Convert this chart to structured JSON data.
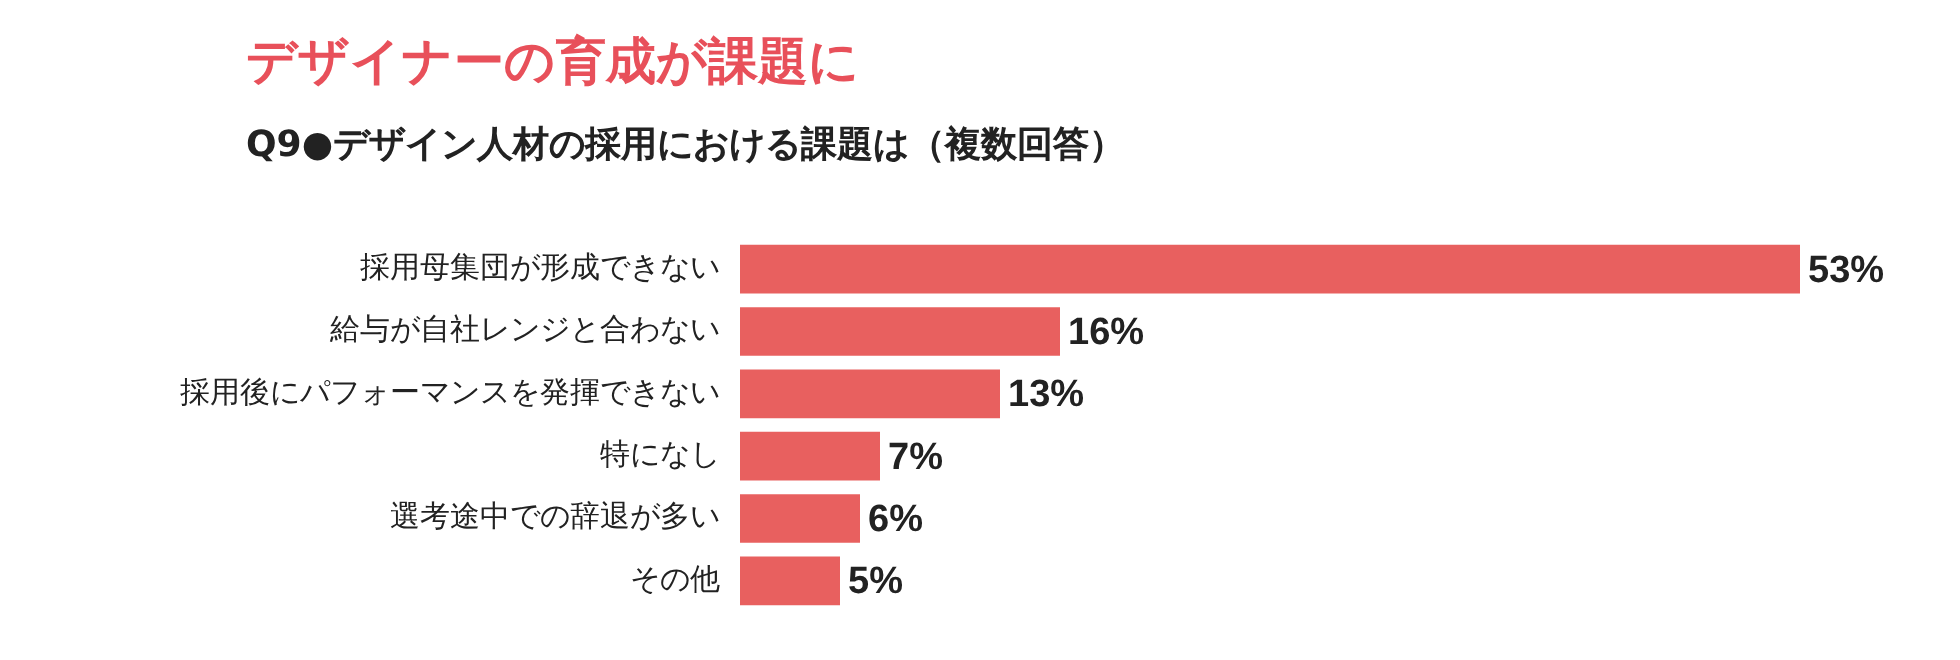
{
  "chart_data": {
    "type": "bar",
    "orientation": "horizontal",
    "title": "デザイナーの育成が課題に",
    "subtitle": "Q9●デザイン人材の採用における課題は（複数回答）",
    "categories": [
      "採用母集団が形成できない",
      "給与が自社レンジと合わない",
      "採用後にパフォーマンスを発揮できない",
      "特になし",
      "選考途中での辞退が多い",
      "その他"
    ],
    "values": [
      53,
      16,
      13,
      7,
      6,
      5
    ],
    "value_labels": [
      "53%",
      "16%",
      "13%",
      "7%",
      "6%",
      "5%"
    ],
    "color": "#e8605f",
    "legend": false,
    "tick_labels": "y"
  }
}
